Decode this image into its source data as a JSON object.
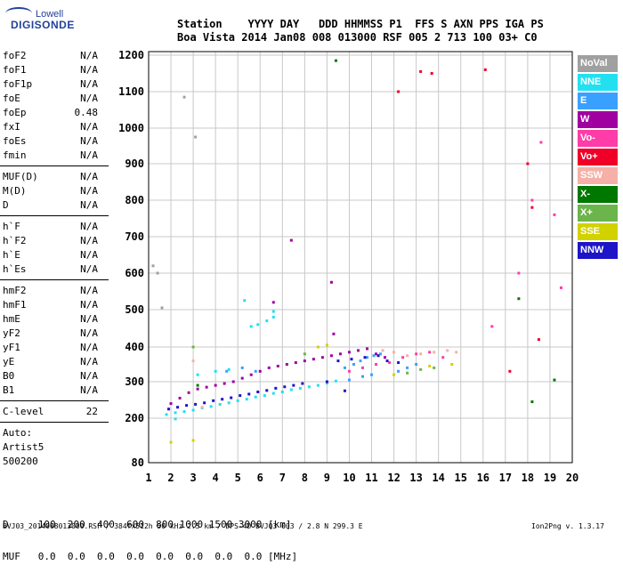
{
  "logo": {
    "line1": "Lowell",
    "line2": "DIGISONDE"
  },
  "header": {
    "row1": "Station    YYYY DAY   DDD HHMMSS P1  FFS S AXN PPS IGA PS",
    "row2": "Boa Vista 2014 Jan08 008 013000 RSF 005 2 713 100 03+ C0"
  },
  "params_group1": [
    {
      "name": "foF2",
      "value": "N/A"
    },
    {
      "name": "foF1",
      "value": "N/A"
    },
    {
      "name": "foF1p",
      "value": "N/A"
    },
    {
      "name": "foE",
      "value": "N/A"
    },
    {
      "name": "foEp",
      "value": "0.48"
    },
    {
      "name": "fxI",
      "value": "N/A"
    },
    {
      "name": "foEs",
      "value": "N/A"
    },
    {
      "name": "fmin",
      "value": "N/A"
    }
  ],
  "params_group2": [
    {
      "name": "MUF(D)",
      "value": "N/A"
    },
    {
      "name": "M(D)",
      "value": "N/A"
    },
    {
      "name": "D",
      "value": "N/A"
    }
  ],
  "params_group3": [
    {
      "name": "h`F",
      "value": "N/A"
    },
    {
      "name": "h`F2",
      "value": "N/A"
    },
    {
      "name": "h`E",
      "value": "N/A"
    },
    {
      "name": "h`Es",
      "value": "N/A"
    }
  ],
  "params_group4": [
    {
      "name": "hmF2",
      "value": "N/A"
    },
    {
      "name": "hmF1",
      "value": "N/A"
    },
    {
      "name": "hmE",
      "value": "N/A"
    },
    {
      "name": "yF2",
      "value": "N/A"
    },
    {
      "name": "yF1",
      "value": "N/A"
    },
    {
      "name": "yE",
      "value": "N/A"
    },
    {
      "name": "B0",
      "value": "N/A"
    },
    {
      "name": "B1",
      "value": "N/A"
    }
  ],
  "c_level": {
    "name": "C-level",
    "value": "22"
  },
  "autoscaling": {
    "line1": "Auto:",
    "line2": "Artist5",
    "line3": "500200"
  },
  "legend": [
    {
      "label": "NoVal",
      "color": "#a0a0a0"
    },
    {
      "label": "NNE",
      "color": "#22e0f0"
    },
    {
      "label": "E",
      "color": "#3aa0ff"
    },
    {
      "label": "W",
      "color": "#a000a0"
    },
    {
      "label": "Vo-",
      "color": "#ff3ca8"
    },
    {
      "label": "Vo+",
      "color": "#f00028"
    },
    {
      "label": "SSW",
      "color": "#f5b0a8"
    },
    {
      "label": "X-",
      "color": "#007800"
    },
    {
      "label": "X+",
      "color": "#6cb44c"
    },
    {
      "label": "SSE",
      "color": "#d2d200"
    },
    {
      "label": "NNW",
      "color": "#1e14c8"
    }
  ],
  "bottom_table": {
    "row1": "D     100  200  400  600  800 1000 1500 3000 [km]",
    "row2": "MUF   0.0  0.0  0.0  0.0  0.0  0.0  0.0  0.0 [MHz]"
  },
  "footer": {
    "left": "BVJ03_2014008013000.RSF / 384fx512h 50 kHz 2.5 km / DPS-4D BVJ03 003 / 2.8 N 299.3 E",
    "right": "Ion2Png v. 1.3.17"
  },
  "chart_data": {
    "type": "scatter",
    "xlim": [
      1,
      20
    ],
    "ylim": [
      80,
      1200
    ],
    "x_ticks": [
      "1",
      "2",
      "3",
      "4",
      "5",
      "6",
      "7",
      "8",
      "9",
      "10",
      "11",
      "12",
      "13",
      "14",
      "15",
      "16",
      "17",
      "18",
      "19",
      "20"
    ],
    "y_ticks": [
      "80",
      "200",
      "300",
      "400",
      "500",
      "600",
      "700",
      "800",
      "900",
      "1000",
      "1100",
      "1200"
    ],
    "y_tick_values": [
      80,
      200,
      300,
      400,
      500,
      600,
      700,
      800,
      900,
      1000,
      1100,
      1200
    ],
    "grid": true,
    "legend_position": "right",
    "series": [
      {
        "name": "NNE",
        "color": "#22e0f0",
        "points": [
          [
            1.8,
            210
          ],
          [
            2.2,
            215
          ],
          [
            2.6,
            218
          ],
          [
            3.0,
            222
          ],
          [
            3.4,
            228
          ],
          [
            3.8,
            232
          ],
          [
            4.2,
            238
          ],
          [
            4.6,
            242
          ],
          [
            5.0,
            248
          ],
          [
            5.4,
            252
          ],
          [
            5.8,
            258
          ],
          [
            6.2,
            262
          ],
          [
            6.6,
            268
          ],
          [
            7.0,
            272
          ],
          [
            7.4,
            278
          ],
          [
            7.8,
            282
          ],
          [
            8.2,
            286
          ],
          [
            8.6,
            290
          ],
          [
            9.0,
            296
          ],
          [
            9.4,
            302
          ],
          [
            3.2,
            320
          ],
          [
            4.0,
            330
          ],
          [
            4.6,
            335
          ],
          [
            5.6,
            455
          ],
          [
            5.9,
            460
          ],
          [
            6.3,
            470
          ],
          [
            6.6,
            480
          ],
          [
            5.3,
            525
          ],
          [
            6.6,
            495
          ],
          [
            2.2,
            198
          ]
        ]
      },
      {
        "name": "E",
        "color": "#3aa0ff",
        "points": [
          [
            9.8,
            340
          ],
          [
            10.2,
            350
          ],
          [
            10.5,
            360
          ],
          [
            10.8,
            370
          ],
          [
            11.1,
            375
          ],
          [
            11.4,
            380
          ],
          [
            10.0,
            305
          ],
          [
            10.6,
            315
          ],
          [
            11.0,
            320
          ],
          [
            12.2,
            330
          ],
          [
            12.6,
            340
          ],
          [
            13.0,
            350
          ],
          [
            4.5,
            330
          ],
          [
            5.2,
            340
          ],
          [
            5.8,
            330
          ]
        ]
      },
      {
        "name": "W",
        "color": "#a000a0",
        "points": [
          [
            2.0,
            240
          ],
          [
            2.4,
            255
          ],
          [
            2.8,
            270
          ],
          [
            3.2,
            280
          ],
          [
            3.6,
            285
          ],
          [
            4.0,
            290
          ],
          [
            4.4,
            295
          ],
          [
            4.8,
            300
          ],
          [
            5.2,
            310
          ],
          [
            5.6,
            320
          ],
          [
            6.0,
            330
          ],
          [
            6.4,
            340
          ],
          [
            6.8,
            345
          ],
          [
            7.2,
            350
          ],
          [
            7.6,
            355
          ],
          [
            8.0,
            360
          ],
          [
            8.4,
            365
          ],
          [
            8.8,
            370
          ],
          [
            9.2,
            375
          ],
          [
            9.6,
            380
          ],
          [
            10.0,
            385
          ],
          [
            10.4,
            390
          ],
          [
            10.8,
            395
          ],
          [
            11.2,
            380
          ],
          [
            11.6,
            370
          ],
          [
            6.6,
            520
          ],
          [
            7.4,
            690
          ],
          [
            9.2,
            575
          ],
          [
            9.3,
            435
          ]
        ]
      },
      {
        "name": "Vo-",
        "color": "#ff3ca8",
        "points": [
          [
            10.0,
            330
          ],
          [
            10.6,
            340
          ],
          [
            11.2,
            350
          ],
          [
            11.8,
            355
          ],
          [
            12.4,
            370
          ],
          [
            13.0,
            380
          ],
          [
            13.6,
            385
          ],
          [
            14.2,
            370
          ],
          [
            16.4,
            455
          ],
          [
            17.6,
            600
          ],
          [
            18.2,
            800
          ],
          [
            18.6,
            960
          ],
          [
            19.2,
            760
          ],
          [
            19.5,
            560
          ]
        ]
      },
      {
        "name": "Vo+",
        "color": "#f00028",
        "points": [
          [
            13.2,
            1155
          ],
          [
            13.7,
            1150
          ],
          [
            16.1,
            1160
          ],
          [
            18.0,
            900
          ],
          [
            18.2,
            780
          ],
          [
            18.5,
            420
          ],
          [
            17.2,
            330
          ],
          [
            12.2,
            1100
          ]
        ]
      },
      {
        "name": "SSW",
        "color": "#f5b0a8",
        "points": [
          [
            11.5,
            390
          ],
          [
            12.0,
            385
          ],
          [
            12.6,
            375
          ],
          [
            13.2,
            380
          ],
          [
            13.8,
            385
          ],
          [
            14.4,
            390
          ],
          [
            14.8,
            385
          ],
          [
            3.0,
            360
          ],
          [
            3.4,
            230
          ]
        ]
      },
      {
        "name": "X-",
        "color": "#007800",
        "points": [
          [
            9.4,
            1185
          ],
          [
            18.2,
            245
          ],
          [
            19.2,
            305
          ],
          [
            17.6,
            530
          ],
          [
            3.2,
            290
          ]
        ]
      },
      {
        "name": "X+",
        "color": "#6cb44c",
        "points": [
          [
            12.6,
            325
          ],
          [
            13.2,
            335
          ],
          [
            13.8,
            340
          ],
          [
            8.0,
            380
          ],
          [
            3.0,
            400
          ]
        ]
      },
      {
        "name": "SSE",
        "color": "#d2d200",
        "points": [
          [
            8.6,
            400
          ],
          [
            9.0,
            405
          ],
          [
            12.0,
            320
          ],
          [
            13.6,
            345
          ],
          [
            14.6,
            350
          ],
          [
            2.0,
            135
          ],
          [
            3.0,
            140
          ]
        ]
      },
      {
        "name": "NNW",
        "color": "#1e14c8",
        "points": [
          [
            1.9,
            225
          ],
          [
            2.3,
            230
          ],
          [
            2.7,
            235
          ],
          [
            3.1,
            238
          ],
          [
            3.5,
            242
          ],
          [
            3.9,
            248
          ],
          [
            4.3,
            252
          ],
          [
            4.7,
            256
          ],
          [
            5.1,
            262
          ],
          [
            5.5,
            266
          ],
          [
            5.9,
            272
          ],
          [
            6.3,
            276
          ],
          [
            6.7,
            282
          ],
          [
            7.1,
            286
          ],
          [
            7.5,
            290
          ],
          [
            7.9,
            295
          ],
          [
            9.5,
            360
          ],
          [
            10.1,
            365
          ],
          [
            10.7,
            370
          ],
          [
            11.3,
            375
          ],
          [
            11.7,
            360
          ],
          [
            12.2,
            355
          ],
          [
            9.0,
            300
          ],
          [
            9.8,
            275
          ]
        ]
      },
      {
        "name": "NoVal",
        "color": "#a0a0a0",
        "points": [
          [
            1.2,
            620
          ],
          [
            1.6,
            505
          ],
          [
            2.6,
            1085
          ],
          [
            1.4,
            600
          ],
          [
            3.1,
            975
          ]
        ]
      }
    ]
  }
}
